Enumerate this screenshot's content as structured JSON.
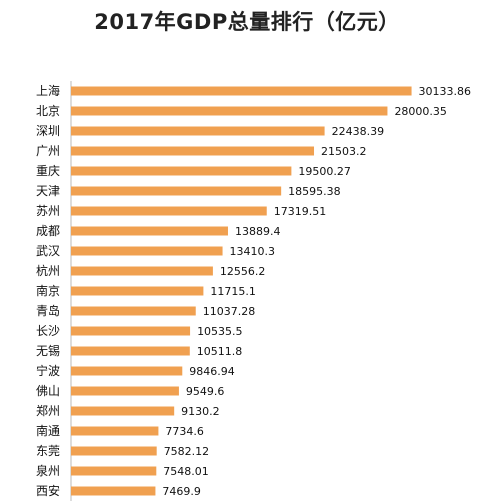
{
  "chart_data": {
    "type": "bar",
    "orientation": "horizontal",
    "title": "2017年GDP总量排行（亿元）",
    "categories": [
      "上海",
      "北京",
      "深圳",
      "广州",
      "重庆",
      "天津",
      "苏州",
      "成都",
      "武汉",
      "杭州",
      "南京",
      "青岛",
      "长沙",
      "无锡",
      "宁波",
      "佛山",
      "郑州",
      "南通",
      "东莞",
      "泉州",
      "西安"
    ],
    "values": [
      30133.86,
      28000.35,
      22438.39,
      21503.2,
      19500.27,
      18595.38,
      17319.51,
      13889.4,
      13410.3,
      12556.2,
      11715.1,
      11037.28,
      10535.5,
      10511.8,
      9846.94,
      9549.6,
      9130.2,
      7734.6,
      7582.12,
      7548.01,
      7469.9
    ],
    "value_labels": [
      "30133.86",
      "28000.35",
      "22438.39",
      "21503.2",
      "19500.27",
      "18595.38",
      "17319.51",
      "13889.4",
      "13410.3",
      "12556.2",
      "11715.1",
      "11037.28",
      "10535.5",
      "10511.8",
      "9846.94",
      "9549.6",
      "9130.2",
      "7734.6",
      "7582.12",
      "7548.01",
      "7469.9"
    ],
    "xlim": [
      0,
      31500
    ],
    "bar_color": "#F0A050",
    "axis_color": "#bbbbbb",
    "grid": false,
    "legend": "none"
  }
}
